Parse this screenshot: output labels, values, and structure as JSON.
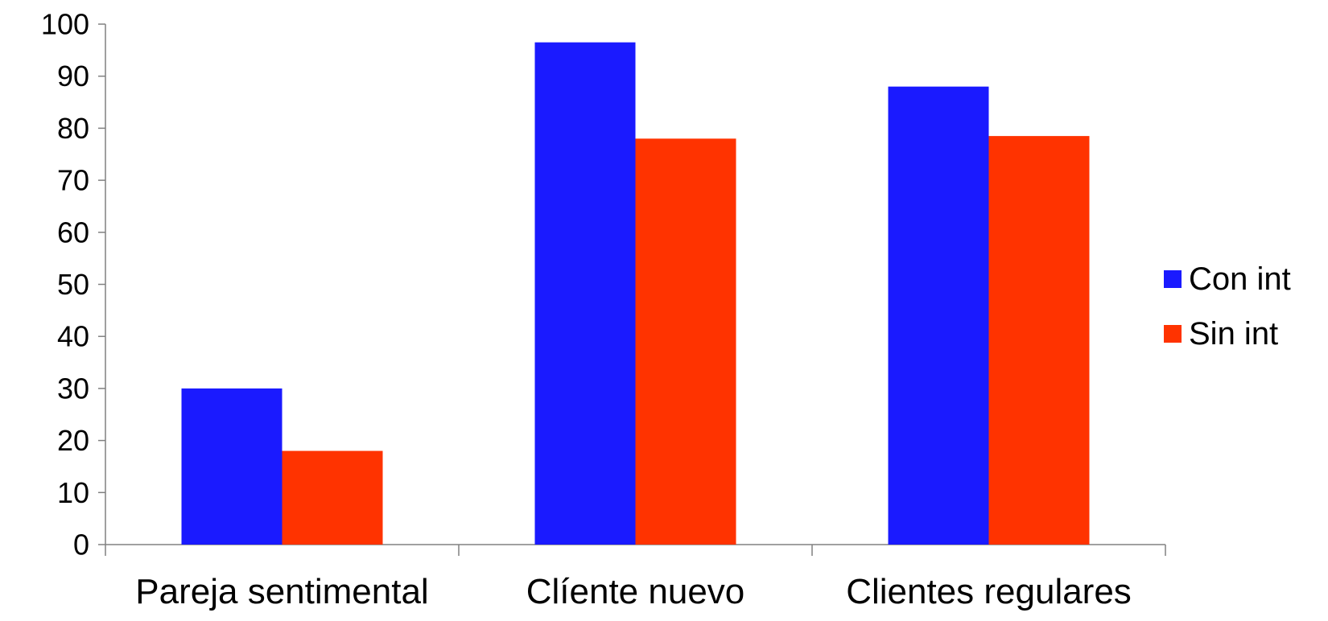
{
  "chart_data": {
    "type": "bar",
    "title": "",
    "xlabel": "",
    "ylabel": "",
    "categories": [
      "Pareja sentimental",
      "Clíente nuevo",
      "Clientes regulares"
    ],
    "series": [
      {
        "name": "Con int",
        "values": [
          30,
          96.5,
          88
        ],
        "color": "#1a1aff"
      },
      {
        "name": "Sin int",
        "values": [
          18,
          78,
          78.5
        ],
        "color": "#ff3300"
      }
    ],
    "ylim": [
      0,
      100
    ],
    "yticks": [
      0,
      10,
      20,
      30,
      40,
      50,
      60,
      70,
      80,
      90,
      100
    ],
    "grid": false,
    "legend_position": "right"
  }
}
